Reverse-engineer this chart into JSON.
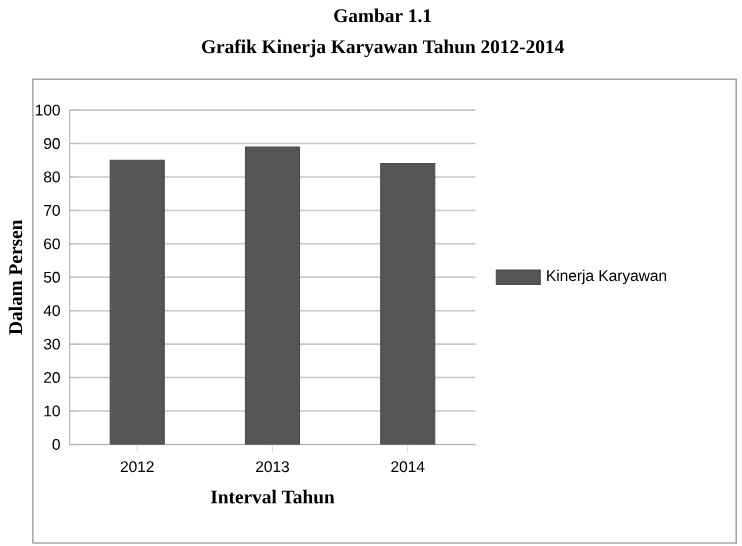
{
  "chart_data": {
    "type": "bar",
    "title": "Gambar 1.1",
    "subtitle": "Grafik Kinerja Karyawan Tahun 2012-2014",
    "xlabel": "Interval Tahun",
    "ylabel": "Dalam Persen",
    "categories": [
      "2012",
      "2013",
      "2014"
    ],
    "series": [
      {
        "name": "Kinerja Karyawan",
        "color": "#555555",
        "values": [
          85,
          89,
          84
        ]
      }
    ],
    "ylim": [
      0,
      100
    ],
    "yticks": [
      0,
      10,
      20,
      30,
      40,
      50,
      60,
      70,
      80,
      90,
      100
    ],
    "grid": "y",
    "legend": "right"
  }
}
